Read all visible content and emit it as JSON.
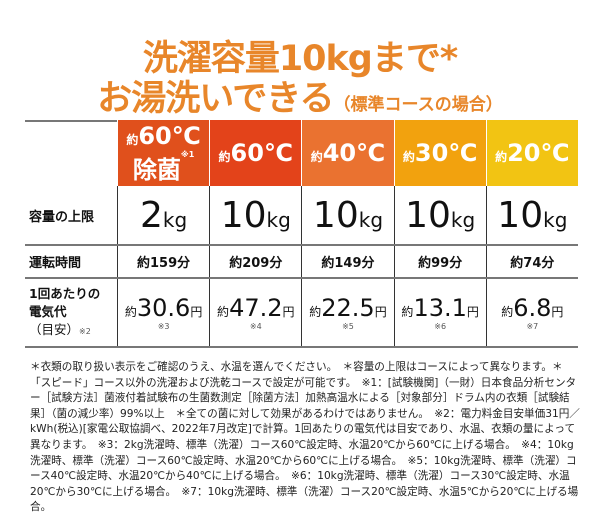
{
  "title": {
    "line1": "洗濯容量10kgまで*",
    "line2": "お湯洗いできる",
    "line2_note": "（標準コースの場合）",
    "color": "#e8862a"
  },
  "table": {
    "row_labels": {
      "capacity": "容量の上限",
      "time": "運転時間",
      "cost_line1": "1回あたりの",
      "cost_line2": "電気代",
      "cost_line3": "（目安）",
      "cost_note": "※2"
    },
    "columns": [
      {
        "prefix": "約",
        "temp": "60℃",
        "extra": "除菌",
        "extra_note": "※1",
        "color": "#e0501c",
        "capacity": "2",
        "unit": "kg",
        "time": "約159分",
        "cost": "30.6",
        "cost_note": "※3"
      },
      {
        "prefix": "約",
        "temp": "60℃",
        "color": "#e3431a",
        "capacity": "10",
        "unit": "kg",
        "time": "約209分",
        "cost": "47.2",
        "cost_note": "※4"
      },
      {
        "prefix": "約",
        "temp": "40℃",
        "color": "#ea7230",
        "capacity": "10",
        "unit": "kg",
        "time": "約149分",
        "cost": "22.5",
        "cost_note": "※5"
      },
      {
        "prefix": "約",
        "temp": "30℃",
        "color": "#f2a20e",
        "capacity": "10",
        "unit": "kg",
        "time": "約99分",
        "cost": "13.1",
        "cost_note": "※6"
      },
      {
        "prefix": "約",
        "temp": "20℃",
        "color": "#f2c413",
        "capacity": "10",
        "unit": "kg",
        "time": "約74分",
        "cost": "6.8",
        "cost_note": "※7"
      }
    ],
    "cost_prefix": "約",
    "cost_unit": "円"
  },
  "footnote": "＊衣類の取り扱い表示をご確認のうえ、水温を選んでください。　＊容量の上限はコースによって異なります。＊「スピード」コース以外の洗濯および洗乾コースで設定が可能です。　※1：[試験機関]（一財）日本食品分析センター［試験方法］菌液付着試験布の生菌数測定［除菌方法］加熱高温水による［対象部分］ドラム内の衣類［試験結果］（菌の減少率）99%以上　＊全ての菌に対して効果があるわけではありません。　※2：電力料金目安単価31円／kWh(税込)[家電公取協調べ、2022年7月改定]で計算。1回あたりの電気代は目安であり、水温、衣類の量によって異なります。　※3：2kg洗濯時、標準（洗濯）コース60℃設定時、水温20℃から60℃に上げる場合。　※4：10kg洗濯時、標準（洗濯）コース60℃設定時、水温20℃から60℃に上げる場合。　※5：10kg洗濯時、標準（洗濯）コース40℃設定時、水温20℃から40℃に上げる場合。　※6：10kg洗濯時、標準（洗濯）コース30℃設定時、水温20℃から30℃に上げる場合。　※7：10kg洗濯時、標準（洗濯）コース20℃設定時、水温5℃から20℃に上げる場合。"
}
